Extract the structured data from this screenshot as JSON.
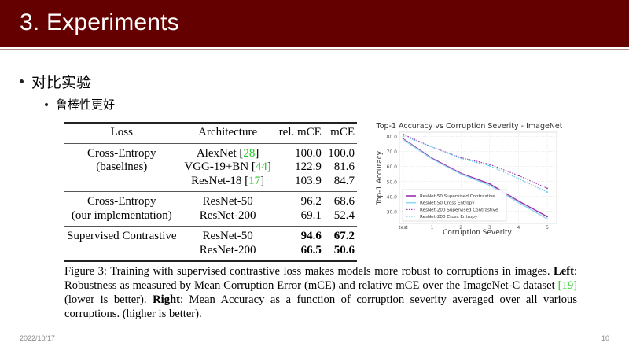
{
  "slide": {
    "title": "3. Experiments",
    "bullets": [
      {
        "level": 1,
        "text": "对比实验"
      },
      {
        "level": 2,
        "text": "鲁棒性更好"
      }
    ],
    "footer": {
      "date": "2022/10/17",
      "page_number": "10"
    },
    "colors": {
      "title_bar": "#650000",
      "citation": "#22cc22",
      "title_text": "#ffffff"
    }
  },
  "table": {
    "headers": [
      "Loss",
      "Architecture",
      "rel. mCE",
      "mCE"
    ],
    "groups": [
      {
        "loss_lines": [
          "Cross-Entropy",
          "(baselines)"
        ],
        "rows": [
          {
            "arch": "AlexNet",
            "cite": "28",
            "rel_mce": "100.0",
            "mce": "100.0",
            "bold": false
          },
          {
            "arch": "VGG-19+BN",
            "cite": "44",
            "rel_mce": "122.9",
            "mce": "81.6",
            "bold": false
          },
          {
            "arch": "ResNet-18",
            "cite": "17",
            "rel_mce": "103.9",
            "mce": "84.7",
            "bold": false
          }
        ]
      },
      {
        "loss_lines": [
          "Cross-Entropy",
          "(our implementation)"
        ],
        "rows": [
          {
            "arch": "ResNet-50",
            "rel_mce": "96.2",
            "mce": "68.6",
            "bold": false
          },
          {
            "arch": "ResNet-200",
            "rel_mce": "69.1",
            "mce": "52.4",
            "bold": false
          }
        ]
      },
      {
        "loss_lines": [
          "Supervised Contrastive"
        ],
        "rows": [
          {
            "arch": "ResNet-50",
            "rel_mce": "94.6",
            "mce": "67.2",
            "bold": true
          },
          {
            "arch": "ResNet-200",
            "rel_mce": "66.5",
            "mce": "50.6",
            "bold": true
          }
        ]
      }
    ]
  },
  "caption": {
    "intro": "Figure 3: Training with supervised contrastive loss makes models more robust to corruptions in images.",
    "left_label": "Left",
    "left_text": ": Robustness as measured by Mean Corruption Error (mCE) and relative mCE over the ImageNet-C dataset",
    "left_cite": "[19]",
    "left_tail": " (lower is better).",
    "right_label": "Right",
    "right_text": ": Mean Accuracy as a function of corruption severity averaged over all various corruptions. (higher is better)."
  },
  "chart_data": {
    "type": "line",
    "title": "Top-1 Accuracy vs Corruption Severity - ImageNet",
    "xlabel": "Corruption Severity",
    "ylabel": "Top-1 Accuracy",
    "categories": [
      "test",
      "1",
      "2",
      "3",
      "4",
      "5"
    ],
    "yticks": [
      "30.0",
      "40.0",
      "50.0",
      "60.0",
      "70.0",
      "80.0"
    ],
    "ylim": [
      22,
      83
    ],
    "grid": true,
    "legend_position": "lower left",
    "series": [
      {
        "name": "ResNet-50 Supervised Contrastive",
        "style": "solid",
        "color": "#9b2fae",
        "values": [
          78.5,
          65.5,
          55.5,
          48.5,
          37.0,
          26.5
        ]
      },
      {
        "name": "ResNet-50 Cross Entropy",
        "style": "solid",
        "color": "#8fd8f0",
        "values": [
          78.0,
          65.0,
          55.0,
          47.5,
          36.0,
          25.0
        ]
      },
      {
        "name": "ResNet-200 Supervised Contrastive",
        "style": "dotted",
        "color": "#9b2fae",
        "values": [
          81.5,
          73.0,
          66.0,
          61.5,
          54.0,
          45.5
        ]
      },
      {
        "name": "ResNet-200 Cross Entropy",
        "style": "dotted",
        "color": "#5ec8ee",
        "values": [
          80.5,
          73.0,
          65.5,
          60.5,
          52.0,
          43.0
        ]
      }
    ]
  }
}
